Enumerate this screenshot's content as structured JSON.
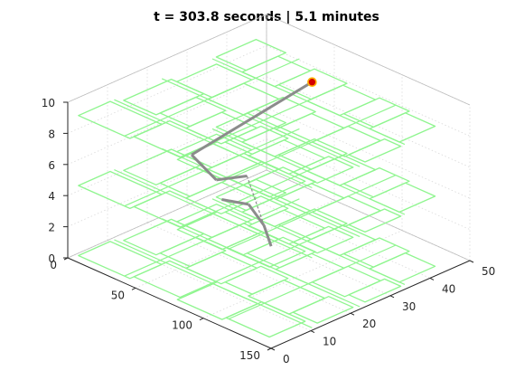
{
  "chart_data": {
    "type": "line3d",
    "title": "t = 303.8 seconds  |  5.1 minutes",
    "grid": true,
    "axes": {
      "x": {
        "lim": [
          0,
          150
        ],
        "ticks": [
          0,
          50,
          100,
          150
        ]
      },
      "y": {
        "lim": [
          0,
          50
        ],
        "ticks": [
          0,
          10,
          20,
          30,
          40,
          50
        ]
      },
      "z": {
        "lim": [
          0,
          10
        ],
        "ticks": [
          0,
          2,
          4,
          6,
          8,
          10
        ]
      }
    },
    "floor_levels_z": [
      0,
      4.5,
      9
    ],
    "colors": {
      "floor_plan": "#8ff58f",
      "trajectory": "#8c8c8c",
      "agent_fill": "#d40000",
      "agent_edge": "#ffb000",
      "axis": "#262626",
      "grid": "#d9d9d9"
    },
    "trajectory": [
      {
        "x": 18,
        "y": 25,
        "z": 4.5
      },
      {
        "x": 48,
        "y": 21,
        "z": 4.5
      },
      {
        "x": 56,
        "y": 26,
        "z": 4.5
      },
      {
        "x": 65,
        "y": 29,
        "z": 0.0
      },
      {
        "x": 45,
        "y": 34,
        "z": 0.0
      },
      {
        "x": 22,
        "y": 38,
        "z": 0.0
      },
      {
        "x": 8,
        "y": 36,
        "z": 0.0
      }
    ],
    "agent": {
      "x": 60,
      "y": 41,
      "z": 9.0
    }
  }
}
